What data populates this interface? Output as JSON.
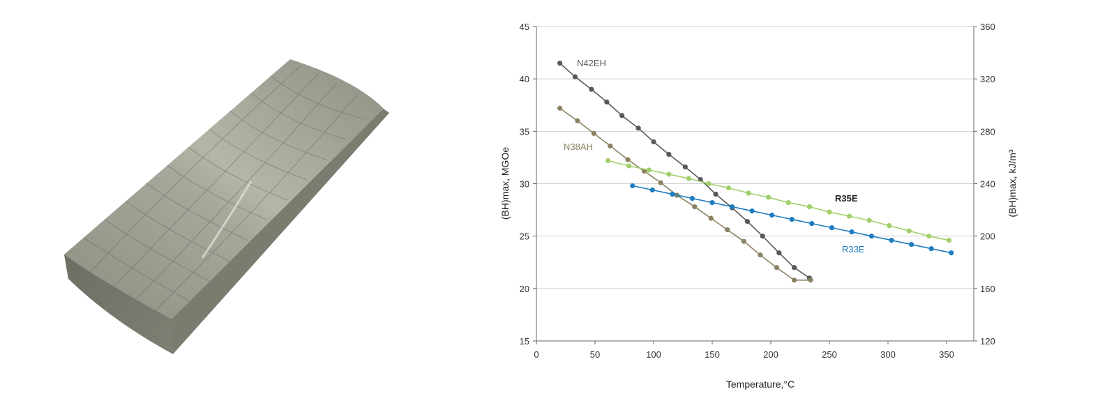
{
  "photo": {
    "subject": "magnet-segment"
  },
  "chart_data": {
    "type": "line",
    "xlabel": "Temperature,°C",
    "ylabel": "(BH)max, MGOe",
    "y2label": "(BH)max, kJ/m³",
    "xlim": [
      0,
      370
    ],
    "ylim": [
      15,
      45
    ],
    "y2lim": [
      120,
      360
    ],
    "xticks": [
      0,
      50,
      100,
      150,
      200,
      250,
      300,
      350
    ],
    "yticks": [
      15,
      20,
      25,
      30,
      35,
      40,
      45
    ],
    "y2ticks": [
      120,
      160,
      200,
      240,
      280,
      320,
      360
    ],
    "grid": "horizontal",
    "series": [
      {
        "name": "N42EH",
        "color": "#58585a",
        "bold": false,
        "x": [
          20,
          33,
          47,
          60,
          73,
          87,
          100,
          113,
          127,
          140,
          153,
          167,
          180,
          193,
          207,
          220,
          233
        ],
        "y": [
          41.5,
          40.2,
          39.0,
          37.8,
          36.5,
          35.3,
          34.0,
          32.8,
          31.6,
          30.4,
          29.0,
          27.7,
          26.4,
          25.0,
          23.4,
          22.0,
          21.0
        ]
      },
      {
        "name": "N38AH",
        "color": "#8a8262",
        "bold": false,
        "x": [
          20,
          35,
          49,
          63,
          78,
          92,
          106,
          120,
          135,
          149,
          163,
          177,
          191,
          205,
          220,
          234
        ],
        "y": [
          37.2,
          36.0,
          34.8,
          33.6,
          32.3,
          31.2,
          30.1,
          28.9,
          27.8,
          26.7,
          25.6,
          24.5,
          23.2,
          22.0,
          20.8,
          20.8
        ]
      },
      {
        "name": "R35E",
        "color": "#a1d06b",
        "bold": true,
        "x": [
          61,
          79,
          96,
          113,
          130,
          147,
          164,
          181,
          198,
          215,
          233,
          250,
          267,
          284,
          301,
          318,
          335,
          352
        ],
        "y": [
          32.2,
          31.7,
          31.3,
          30.9,
          30.5,
          30.0,
          29.6,
          29.1,
          28.7,
          28.2,
          27.8,
          27.3,
          26.9,
          26.5,
          26.0,
          25.5,
          25.0,
          24.6
        ]
      },
      {
        "name": "R33E",
        "color": "#1e7cc1",
        "bold": false,
        "x": [
          82,
          99,
          116,
          133,
          150,
          167,
          184,
          201,
          218,
          235,
          252,
          269,
          286,
          303,
          320,
          337,
          354
        ],
        "y": [
          29.8,
          29.4,
          29.0,
          28.6,
          28.2,
          27.8,
          27.4,
          27.0,
          26.6,
          26.2,
          25.8,
          25.4,
          25.0,
          24.6,
          24.2,
          23.8,
          23.4
        ]
      }
    ]
  }
}
